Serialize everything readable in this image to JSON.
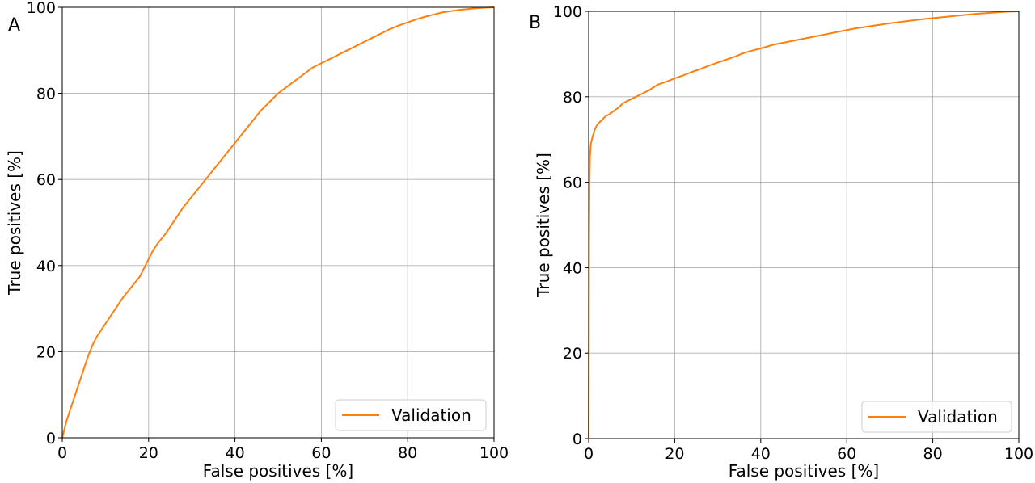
{
  "chart_data": [
    {
      "type": "line",
      "panel": "A",
      "xlabel": "False positives [%]",
      "ylabel": "True positives [%]",
      "xlim": [
        0,
        100
      ],
      "ylim": [
        0,
        100
      ],
      "xticks": [
        "0",
        "20",
        "40",
        "60",
        "80",
        "100"
      ],
      "yticks": [
        "0",
        "20",
        "40",
        "60",
        "80",
        "100"
      ],
      "grid": true,
      "legend_position": "lower-right",
      "series": [
        {
          "name": "Validation",
          "color": "#ff7f0e",
          "x": [
            0,
            1,
            2,
            3,
            4,
            5,
            6,
            7,
            8,
            9,
            10,
            12,
            14,
            16,
            18,
            19,
            20,
            21,
            22,
            24,
            26,
            28,
            30,
            32,
            34,
            36,
            38,
            40,
            42,
            44,
            46,
            48,
            50,
            52,
            54,
            56,
            58,
            60,
            62,
            64,
            66,
            68,
            70,
            72,
            74,
            76,
            78,
            80,
            82,
            84,
            86,
            88,
            90,
            92,
            94,
            96,
            98,
            100
          ],
          "y": [
            0,
            4,
            7,
            10,
            13,
            16,
            19,
            21.5,
            23.5,
            25,
            26.5,
            29.5,
            32.5,
            35,
            37.5,
            39.5,
            41.5,
            43.5,
            45,
            47.5,
            50.5,
            53.5,
            56,
            58.5,
            61,
            63.5,
            66,
            68.5,
            71,
            73.5,
            76,
            78,
            80,
            81.5,
            83,
            84.5,
            86,
            87,
            88,
            89,
            90,
            91,
            92,
            93,
            94,
            95,
            95.8,
            96.5,
            97.2,
            97.8,
            98.3,
            98.8,
            99.1,
            99.4,
            99.6,
            99.8,
            99.9,
            100
          ]
        }
      ]
    },
    {
      "type": "line",
      "panel": "B",
      "xlabel": "False positives [%]",
      "ylabel": "True positives [%]",
      "xlim": [
        0,
        100
      ],
      "ylim": [
        0,
        100
      ],
      "xticks": [
        "0",
        "20",
        "40",
        "60",
        "80",
        "100"
      ],
      "yticks": [
        "0",
        "20",
        "40",
        "60",
        "80",
        "100"
      ],
      "grid": true,
      "legend_position": "lower-right",
      "series": [
        {
          "name": "Validation",
          "color": "#ff7f0e",
          "x": [
            0,
            0.05,
            0.1,
            0.2,
            0.3,
            0.5,
            1,
            1.5,
            2,
            3,
            4,
            5,
            6,
            7,
            8,
            10,
            12,
            14,
            16,
            18,
            20,
            22,
            24,
            26,
            28,
            30,
            32,
            34,
            36,
            38,
            40,
            43,
            46,
            50,
            54,
            58,
            62,
            66,
            70,
            74,
            78,
            82,
            86,
            90,
            94,
            97,
            100
          ],
          "y": [
            0,
            20,
            45,
            60,
            66,
            69,
            71,
            72.5,
            73.5,
            74.5,
            75.5,
            76,
            76.8,
            77.5,
            78.5,
            79.5,
            80.5,
            81.5,
            82.8,
            83.5,
            84.3,
            85,
            85.8,
            86.5,
            87.3,
            88,
            88.7,
            89.4,
            90.2,
            90.8,
            91.3,
            92.2,
            92.8,
            93.6,
            94.4,
            95.2,
            96,
            96.6,
            97.2,
            97.7,
            98.2,
            98.6,
            99,
            99.4,
            99.7,
            99.9,
            100
          ]
        }
      ]
    }
  ]
}
